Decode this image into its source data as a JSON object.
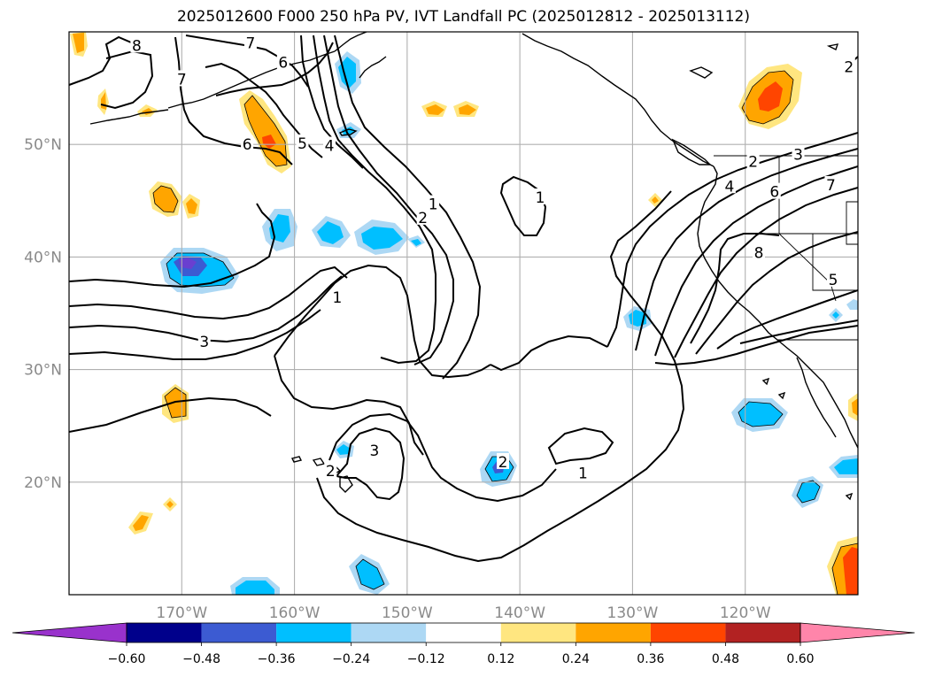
{
  "title": "2025012600 F000 250 hPa PV, IVT Landfall PC (2025012812 - 2025013112)",
  "map": {
    "lon_range": [
      -180,
      -110
    ],
    "lat_range": [
      10,
      60
    ],
    "lon_ticks": [
      {
        "value": -170,
        "label": "170°W"
      },
      {
        "value": -160,
        "label": "160°W"
      },
      {
        "value": -150,
        "label": "150°W"
      },
      {
        "value": -140,
        "label": "140°W"
      },
      {
        "value": -130,
        "label": "130°W"
      },
      {
        "value": -120,
        "label": "120°W"
      }
    ],
    "lat_ticks": [
      {
        "value": 20,
        "label": "20°N"
      },
      {
        "value": 30,
        "label": "30°N"
      },
      {
        "value": 40,
        "label": "40°N"
      },
      {
        "value": 50,
        "label": "50°N"
      }
    ],
    "grid": true
  },
  "contour_labels": [
    {
      "text": "8",
      "lon": -174,
      "lat": 58.8
    },
    {
      "text": "7",
      "lon": -170,
      "lat": 55.8
    },
    {
      "text": "7",
      "lon": -163.9,
      "lat": 59.0
    },
    {
      "text": "6",
      "lon": -161.0,
      "lat": 57.3
    },
    {
      "text": "6",
      "lon": -164.2,
      "lat": 50.0
    },
    {
      "text": "5",
      "lon": -159.3,
      "lat": 50.1
    },
    {
      "text": "4",
      "lon": -156.9,
      "lat": 49.9
    },
    {
      "text": "2",
      "lon": -148.6,
      "lat": 43.5
    },
    {
      "text": "1",
      "lon": -147.7,
      "lat": 44.7
    },
    {
      "text": "1",
      "lon": -156.2,
      "lat": 36.4
    },
    {
      "text": "3",
      "lon": -168.0,
      "lat": 32.5
    },
    {
      "text": "1",
      "lon": -138.2,
      "lat": 45.3
    },
    {
      "text": "2",
      "lon": -156.8,
      "lat": 21.0
    },
    {
      "text": "3",
      "lon": -152.9,
      "lat": 22.8
    },
    {
      "text": "2",
      "lon": -141.5,
      "lat": 21.8
    },
    {
      "text": "1",
      "lon": -134.4,
      "lat": 20.8
    },
    {
      "text": "2",
      "lon": -119.3,
      "lat": 48.5
    },
    {
      "text": "4",
      "lon": -121.4,
      "lat": 46.3
    },
    {
      "text": "6",
      "lon": -117.4,
      "lat": 45.8
    },
    {
      "text": "3",
      "lon": -115.3,
      "lat": 49.1
    },
    {
      "text": "7",
      "lon": -112.4,
      "lat": 46.4
    },
    {
      "text": "8",
      "lon": -118.8,
      "lat": 40.4
    },
    {
      "text": "5",
      "lon": -112.2,
      "lat": 38.0
    },
    {
      "text": "2",
      "lon": -110.8,
      "lat": 56.9
    }
  ],
  "colorbar": {
    "colors": [
      "#9932cc",
      "#00008b",
      "#3c5bd2",
      "#00bfff",
      "#add8f4",
      "#ffffff",
      "#ffe680",
      "#ffa500",
      "#ff4500",
      "#b22222",
      "#ff85aa"
    ],
    "ticks": [
      "−0.60",
      "−0.48",
      "−0.36",
      "−0.24",
      "−0.12",
      "0.12",
      "0.24",
      "0.36",
      "0.48",
      "0.60"
    ]
  },
  "colors": {
    "positive_light": "#ffe680",
    "positive_mid": "#ffa500",
    "positive_strong": "#ff4500",
    "positive_max": "#e0301e",
    "negative_light": "#add8f4",
    "negative_mid": "#00bfff",
    "negative_strong": "#3c5bd2",
    "negative_max": "#6a3fd0"
  }
}
